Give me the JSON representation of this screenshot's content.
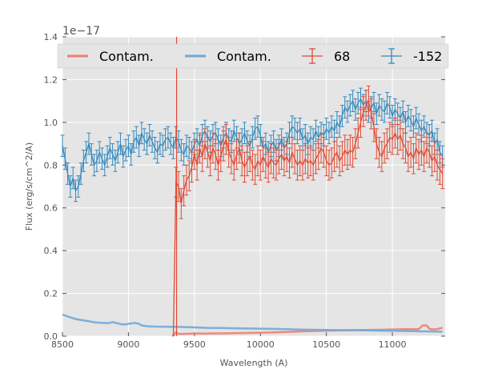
{
  "chart_data": {
    "type": "line",
    "title": "",
    "xlabel": "Wavelength (A)",
    "ylabel": "Flux (erg/s/cm^2/A)",
    "y_offset_text": "1e−17",
    "xlim": [
      8500,
      11400
    ],
    "ylim": [
      0,
      1.4
    ],
    "x_ticks": [
      8500,
      9000,
      9500,
      10000,
      10500,
      11000
    ],
    "y_ticks": [
      0.0,
      0.2,
      0.4,
      0.6,
      0.8,
      1.0,
      1.2,
      1.4
    ],
    "x_tick_labels": [
      "8500",
      "9000",
      "9500",
      "10000",
      "10500",
      "11000"
    ],
    "y_tick_labels": [
      "0.0",
      "0.2",
      "0.4",
      "0.6",
      "0.8",
      "1.0",
      "1.2",
      "1.4"
    ],
    "grid": true,
    "legend_position": "top",
    "legend": [
      {
        "label": "Contam.",
        "style": "line",
        "color": "#f08070"
      },
      {
        "label": "Contam.",
        "style": "line",
        "color": "#6fa8d8"
      },
      {
        "label": "68",
        "style": "errorbar",
        "color": "#e24a33"
      },
      {
        "label": "-152",
        "style": "errorbar",
        "color": "#348abd"
      }
    ],
    "series": [
      {
        "name": "-152",
        "kind": "errorbar",
        "color": "#348abd",
        "x": [
          8500,
          8520,
          8540,
          8560,
          8580,
          8600,
          8620,
          8640,
          8660,
          8680,
          8700,
          8720,
          8740,
          8760,
          8780,
          8800,
          8820,
          8840,
          8860,
          8880,
          8900,
          8920,
          8940,
          8960,
          8980,
          9000,
          9020,
          9040,
          9060,
          9080,
          9100,
          9120,
          9140,
          9160,
          9180,
          9200,
          9220,
          9240,
          9260,
          9280,
          9300,
          9320,
          9340,
          9360,
          9380,
          9400,
          9420,
          9440,
          9460,
          9480,
          9500,
          9520,
          9540,
          9560,
          9580,
          9600,
          9620,
          9640,
          9660,
          9680,
          9700,
          9720,
          9740,
          9760,
          9780,
          9800,
          9820,
          9840,
          9860,
          9880,
          9900,
          9920,
          9940,
          9960,
          9980,
          10000,
          10020,
          10040,
          10060,
          10080,
          10100,
          10120,
          10140,
          10160,
          10180,
          10200,
          10220,
          10240,
          10260,
          10280,
          10300,
          10320,
          10340,
          10360,
          10380,
          10400,
          10420,
          10440,
          10460,
          10480,
          10500,
          10520,
          10540,
          10560,
          10580,
          10600,
          10620,
          10640,
          10660,
          10680,
          10700,
          10720,
          10740,
          10760,
          10780,
          10800,
          10820,
          10840,
          10860,
          10880,
          10900,
          10920,
          10940,
          10960,
          10980,
          11000,
          11020,
          11040,
          11060,
          11080,
          11100,
          11120,
          11140,
          11160,
          11180,
          11200,
          11220,
          11240,
          11260,
          11280,
          11300,
          11320,
          11340,
          11360,
          11380
        ],
        "y": [
          0.89,
          0.83,
          0.76,
          0.7,
          0.74,
          0.68,
          0.7,
          0.76,
          0.82,
          0.86,
          0.9,
          0.85,
          0.8,
          0.82,
          0.86,
          0.83,
          0.8,
          0.84,
          0.88,
          0.85,
          0.82,
          0.86,
          0.9,
          0.84,
          0.87,
          0.89,
          0.85,
          0.91,
          0.93,
          0.89,
          0.95,
          0.92,
          0.9,
          0.94,
          0.91,
          0.88,
          0.86,
          0.9,
          0.89,
          0.92,
          0.93,
          0.9,
          0.88,
          0.93,
          0.91,
          0.87,
          0.85,
          0.89,
          0.88,
          0.86,
          0.9,
          0.92,
          0.89,
          0.94,
          0.96,
          0.93,
          0.91,
          0.94,
          0.95,
          0.92,
          0.89,
          0.93,
          0.95,
          0.92,
          0.91,
          0.96,
          0.93,
          0.9,
          0.92,
          0.95,
          0.91,
          0.89,
          0.93,
          0.97,
          0.98,
          0.94,
          0.88,
          0.9,
          0.86,
          0.89,
          0.91,
          0.87,
          0.89,
          0.92,
          0.88,
          0.9,
          0.95,
          0.98,
          0.97,
          0.95,
          0.97,
          0.92,
          0.94,
          0.9,
          0.93,
          0.92,
          0.96,
          0.93,
          0.95,
          0.94,
          0.97,
          0.95,
          0.98,
          0.96,
          1.0,
          0.98,
          1.03,
          1.07,
          1.05,
          1.08,
          1.1,
          1.06,
          1.09,
          1.11,
          1.08,
          1.1,
          1.05,
          1.07,
          1.09,
          1.04,
          1.08,
          1.06,
          1.05,
          1.09,
          1.07,
          1.03,
          1.06,
          1.04,
          1.02,
          1.05,
          1.0,
          1.03,
          1.01,
          0.98,
          1.02,
          0.99,
          0.96,
          0.98,
          0.95,
          0.94,
          0.96,
          0.9,
          0.92,
          0.86,
          0.84
        ],
        "yerr": 0.05
      },
      {
        "name": "68",
        "kind": "errorbar",
        "color": "#e24a33",
        "x": [
          9340,
          9360,
          9380,
          9400,
          9420,
          9440,
          9460,
          9480,
          9500,
          9520,
          9540,
          9560,
          9580,
          9600,
          9620,
          9640,
          9660,
          9680,
          9700,
          9720,
          9740,
          9760,
          9780,
          9800,
          9820,
          9840,
          9860,
          9880,
          9900,
          9920,
          9940,
          9960,
          9980,
          10000,
          10020,
          10040,
          10060,
          10080,
          10100,
          10120,
          10140,
          10160,
          10180,
          10200,
          10220,
          10240,
          10260,
          10280,
          10300,
          10320,
          10340,
          10360,
          10380,
          10400,
          10420,
          10440,
          10460,
          10480,
          10500,
          10520,
          10540,
          10560,
          10580,
          10600,
          10620,
          10640,
          10660,
          10680,
          10700,
          10720,
          10740,
          10760,
          10780,
          10800,
          10820,
          10840,
          10860,
          10880,
          10900,
          10920,
          10940,
          10960,
          10980,
          11000,
          11020,
          11040,
          11060,
          11080,
          11100,
          11120,
          11140,
          11160,
          11180,
          11200,
          11220,
          11240,
          11260,
          11280,
          11300,
          11320,
          11340,
          11360,
          11380
        ],
        "y": [
          0.0,
          0.72,
          0.7,
          0.62,
          0.68,
          0.73,
          0.75,
          0.79,
          0.85,
          0.8,
          0.88,
          0.84,
          0.9,
          0.86,
          0.82,
          0.88,
          0.85,
          0.8,
          0.84,
          0.89,
          0.92,
          0.86,
          0.83,
          0.8,
          0.85,
          0.88,
          0.82,
          0.79,
          0.82,
          0.84,
          0.8,
          0.78,
          0.82,
          0.8,
          0.84,
          0.81,
          0.79,
          0.83,
          0.81,
          0.8,
          0.83,
          0.85,
          0.82,
          0.84,
          0.81,
          0.86,
          0.83,
          0.8,
          0.82,
          0.8,
          0.83,
          0.81,
          0.82,
          0.8,
          0.83,
          0.85,
          0.88,
          0.86,
          0.82,
          0.8,
          0.81,
          0.84,
          0.86,
          0.82,
          0.84,
          0.87,
          0.85,
          0.87,
          0.86,
          0.9,
          0.95,
          1.0,
          1.05,
          1.08,
          1.1,
          1.04,
          0.98,
          0.9,
          0.86,
          0.84,
          0.88,
          0.9,
          0.93,
          0.92,
          0.95,
          0.92,
          0.94,
          0.9,
          0.88,
          0.84,
          0.86,
          0.83,
          0.88,
          0.85,
          0.87,
          0.84,
          0.88,
          0.86,
          0.82,
          0.84,
          0.8,
          0.78,
          0.76
        ],
        "yerr": 0.07,
        "spike": {
          "x": 9365,
          "y_low": 0.0,
          "y_high": 1.4
        }
      },
      {
        "name": "Contam.",
        "kind": "line",
        "color": "#f08070",
        "x": [
          9330,
          9345,
          9360,
          9375,
          9390,
          9420,
          9500,
          9700,
          9900,
          10100,
          10300,
          10500,
          10700,
          10900,
          11100,
          11200,
          11230,
          11260,
          11280,
          11300,
          11340,
          11380
        ],
        "y": [
          0.0,
          0.006,
          0.018,
          0.012,
          0.01,
          0.011,
          0.012,
          0.013,
          0.015,
          0.018,
          0.022,
          0.026,
          0.028,
          0.03,
          0.033,
          0.033,
          0.05,
          0.05,
          0.035,
          0.032,
          0.033,
          0.04
        ]
      },
      {
        "name": "Contam.",
        "kind": "line",
        "color": "#6fa8d8",
        "x": [
          8500,
          8550,
          8600,
          8650,
          8700,
          8750,
          8800,
          8850,
          8880,
          8900,
          8950,
          8980,
          9000,
          9050,
          9080,
          9100,
          9150,
          9200,
          9300,
          9400,
          9500,
          9600,
          9700,
          9800,
          9900,
          10000,
          10100,
          10200,
          10300,
          10400,
          10500,
          10600,
          10700,
          10800,
          10900,
          11000,
          11100,
          11200,
          11300,
          11380
        ],
        "y": [
          0.101,
          0.09,
          0.08,
          0.075,
          0.07,
          0.064,
          0.062,
          0.061,
          0.066,
          0.063,
          0.055,
          0.055,
          0.058,
          0.062,
          0.058,
          0.05,
          0.046,
          0.045,
          0.044,
          0.043,
          0.041,
          0.039,
          0.038,
          0.037,
          0.036,
          0.035,
          0.034,
          0.033,
          0.031,
          0.03,
          0.029,
          0.028,
          0.028,
          0.027,
          0.026,
          0.025,
          0.024,
          0.023,
          0.022,
          0.021
        ]
      }
    ]
  }
}
